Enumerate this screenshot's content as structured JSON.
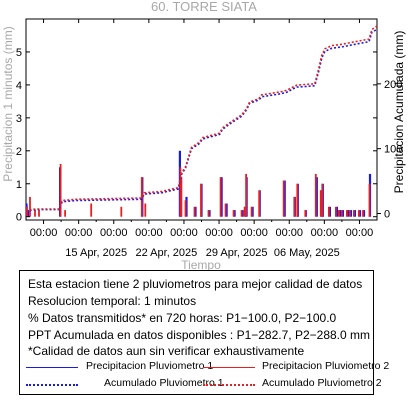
{
  "chart_data": {
    "type": "bar",
    "title": "60. TORRE SIATA",
    "xlabel": "Tiempo",
    "ylabel_left": "Precipitacion 1 minutos (mm)",
    "ylabel_right": "Precipitacion Acumulada (mm)",
    "ylim_left": [
      -0.1,
      6.0
    ],
    "ylim_right": [
      -10,
      300
    ],
    "yticks_left": [
      0,
      1,
      2,
      3,
      4,
      5
    ],
    "yticks_right": [
      0,
      100,
      200
    ],
    "xlim": [
      "2025-04-08 00:00",
      "2025-05-13 00:00"
    ],
    "xticks_major": [
      "00:00",
      "00:00",
      "00:00",
      "00:00",
      "00:00",
      "00:00",
      "00:00",
      "00:00",
      "00:00",
      "00:00"
    ],
    "xticks_dates": [
      "15 Apr, 2025",
      "22 Apr, 2025",
      "29 Apr, 2025",
      "06 May, 2025"
    ],
    "grid": false,
    "series": [
      {
        "name": "Precipitacion Pluviometro 1",
        "color": "#1a1ae6",
        "kind": "bar",
        "x_days": [
          0.05,
          0.2,
          3.4,
          11.6,
          15.35,
          15.45,
          16.0,
          16.9,
          17.5,
          18.3,
          19.5,
          20.0,
          20.8,
          21.6,
          21.9,
          22.0,
          22.6,
          23.3,
          25.8,
          26.8,
          27.1,
          27.9,
          29.0,
          29.5,
          29.6,
          30.3,
          31.0,
          31.3,
          31.6,
          32.1,
          32.4,
          32.8,
          33.3,
          33.7,
          34.3
        ],
        "values": [
          0.4,
          0.2,
          1.5,
          1.2,
          2.0,
          1.2,
          0.6,
          0.3,
          1.0,
          0.2,
          1.2,
          0.4,
          0.2,
          0.2,
          0.3,
          1.2,
          0.3,
          0.8,
          1.1,
          0.6,
          1.0,
          0.2,
          1.2,
          0.8,
          1.0,
          0.3,
          0.3,
          0.2,
          0.2,
          0.2,
          0.2,
          0.2,
          0.2,
          0.2,
          1.3
        ]
      },
      {
        "name": "Precipitacion Pluviometro 2",
        "color": "#e62020",
        "kind": "bar",
        "x_days": [
          0.1,
          0.4,
          0.9,
          1.3,
          3.45,
          3.9,
          6.5,
          9.5,
          11.55,
          11.9,
          15.4,
          15.5,
          15.9,
          16.8,
          17.45,
          18.2,
          19.4,
          19.9,
          20.7,
          21.5,
          21.8,
          21.95,
          22.5,
          23.25,
          25.7,
          26.75,
          27.05,
          27.85,
          28.9,
          29.4,
          29.55,
          30.2,
          30.9,
          31.2,
          31.5,
          32.0,
          32.3,
          32.7,
          33.2,
          33.6,
          34.25
        ],
        "values": [
          0.3,
          0.6,
          0.2,
          0.2,
          1.6,
          0.2,
          0.4,
          0.3,
          1.2,
          0.4,
          1.5,
          1.2,
          0.5,
          0.3,
          1.0,
          0.2,
          1.2,
          0.4,
          0.2,
          0.2,
          0.3,
          1.3,
          0.3,
          0.8,
          1.1,
          0.6,
          1.0,
          0.2,
          1.3,
          0.8,
          1.0,
          0.3,
          0.3,
          0.2,
          0.2,
          0.2,
          0.2,
          0.2,
          0.2,
          0.2,
          1.0
        ]
      },
      {
        "name": "Acumulado Pluviometro 1",
        "color": "#1a1ae6",
        "kind": "line",
        "axis": "right",
        "x_days": [
          0.0,
          0.5,
          1.0,
          3.3,
          3.6,
          5.0,
          11.5,
          11.8,
          13.5,
          15.2,
          15.5,
          15.9,
          16.5,
          17.3,
          17.6,
          19.3,
          19.6,
          20.5,
          21.5,
          22.0,
          22.3,
          23.2,
          23.5,
          25.5,
          26.0,
          26.6,
          27.0,
          28.8,
          29.2,
          29.5,
          29.8,
          30.5,
          31.5,
          32.5,
          33.5,
          34.2,
          34.5,
          35.0
        ],
        "values": [
          2,
          5,
          6,
          6,
          18,
          20,
          22,
          30,
          32,
          38,
          60,
          70,
          100,
          108,
          115,
          122,
          130,
          140,
          150,
          160,
          170,
          175,
          180,
          185,
          187,
          192,
          195,
          197,
          220,
          240,
          250,
          255,
          257,
          260,
          263,
          265,
          280,
          284
        ]
      },
      {
        "name": "Acumulado Pluviometro 2",
        "color": "#e62020",
        "kind": "line",
        "axis": "right",
        "x_days": [
          0.0,
          0.5,
          1.0,
          3.3,
          3.6,
          5.0,
          11.5,
          11.8,
          13.5,
          15.2,
          15.5,
          15.9,
          16.5,
          17.3,
          17.6,
          19.3,
          19.6,
          20.5,
          21.5,
          22.0,
          22.3,
          23.2,
          23.5,
          25.5,
          26.0,
          26.6,
          27.0,
          28.8,
          29.2,
          29.5,
          29.8,
          30.5,
          31.5,
          32.5,
          33.5,
          34.2,
          34.5,
          35.0
        ],
        "values": [
          2,
          6,
          7,
          7,
          20,
          22,
          24,
          32,
          34,
          40,
          62,
          72,
          102,
          110,
          117,
          124,
          132,
          142,
          152,
          162,
          172,
          177,
          183,
          188,
          190,
          195,
          198,
          200,
          224,
          244,
          254,
          259,
          261,
          264,
          267,
          269,
          284,
          289
        ]
      }
    ]
  },
  "info": {
    "lines": [
      "Esta estacion tiene 2 pluviometros para mejor calidad de datos",
      "Resolucion temporal: 1 minutos",
      "% Datos transmitidos* en 720 horas: P1−100.0, P2−100.0",
      "PPT Acumulada en datos disponibles : P1−282.7, P2−288.0 mm",
      "*Calidad de datos aun sin verificar exhaustivamente"
    ]
  },
  "legend": {
    "precip1": "Precipitacion Pluviometro 1",
    "precip2": "Precipitacion Pluviometro 2",
    "acum1": "Acumulado Pluviometro 1",
    "acum2": "Acumulado Pluviometro 2"
  }
}
